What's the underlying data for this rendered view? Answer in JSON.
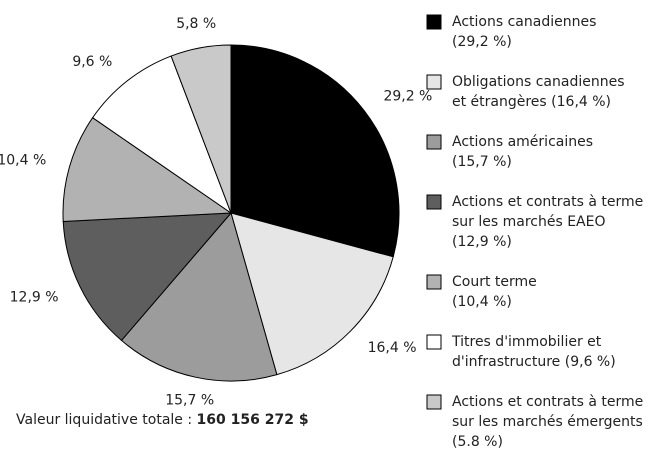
{
  "chart_data": {
    "type": "pie",
    "categories": [
      "Actions canadiennes\n(29,2 %)",
      "Obligations canadiennes\net étrangères (16,4 %)",
      "Actions américaines\n(15,7 %)",
      "Actions et contrats à terme\nsur les marchés EAEO\n(12,9 %)",
      "Court terme\n(10,4 %)",
      "Titres d'immobilier et\nd'infrastructure (9,6 %)",
      "Actions et contrats à terme\nsur les marchés émergents\n(5.8 %)"
    ],
    "values": [
      29.2,
      16.4,
      15.7,
      12.9,
      10.4,
      9.6,
      5.8
    ],
    "value_labels": [
      "29,2 %",
      "16,4 %",
      "15,7 %",
      "12,9 %",
      "10,4 %",
      "9,6 %",
      "5,8 %"
    ],
    "colors": [
      "#000000",
      "#e6e6e6",
      "#9c9c9c",
      "#5e5e5e",
      "#b2b2b2",
      "#ffffff",
      "#c9c9c9"
    ],
    "total_label": "Valeur liquidative totale :",
    "total_value": "160 156 272 $"
  }
}
